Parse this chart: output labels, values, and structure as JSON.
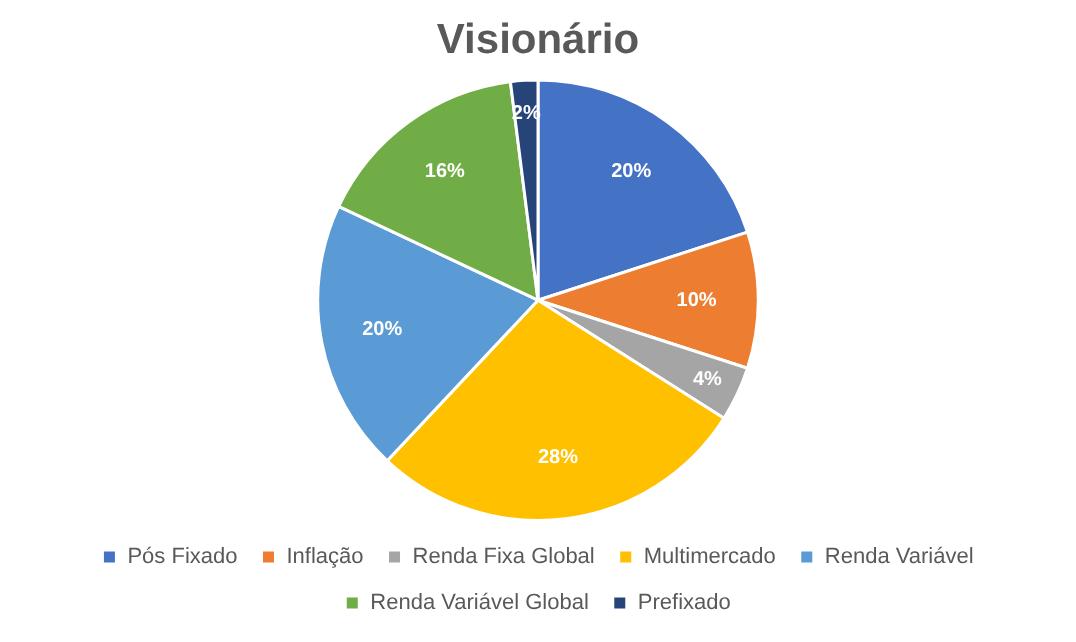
{
  "chart_data": {
    "type": "pie",
    "title": "Visionário",
    "categories": [
      "Pós Fixado",
      "Inflação",
      "Renda Fixa Global",
      "Multimercado",
      "Renda Variável",
      "Renda Variável Global",
      "Prefixado"
    ],
    "values": [
      20,
      10,
      4,
      28,
      20,
      16,
      2
    ],
    "value_labels": [
      "20%",
      "10%",
      "4%",
      "28%",
      "20%",
      "16%",
      "2%"
    ],
    "colors": [
      "#4472c4",
      "#ed7d31",
      "#a5a5a5",
      "#ffc000",
      "#5b9bd5",
      "#70ad47",
      "#264478"
    ],
    "legend": "bottom"
  }
}
